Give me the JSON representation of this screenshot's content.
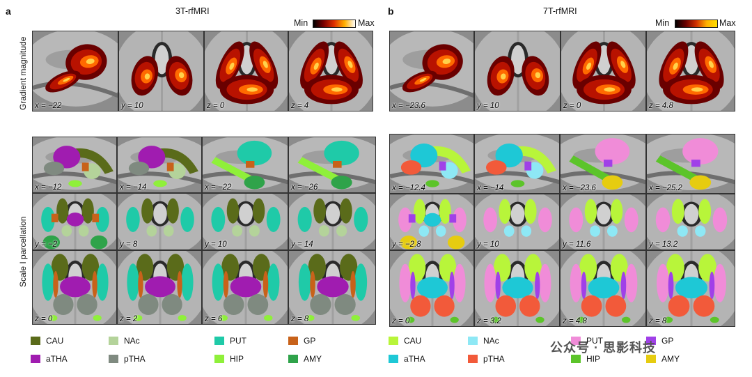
{
  "panels": [
    {
      "letter": "a",
      "title": "3T-rfMRI",
      "colorbar": {
        "min_label": "Min",
        "max_label": "Max",
        "stops": [
          "#000000",
          "#7a0000",
          "#e03000",
          "#ffb000",
          "#ffffff"
        ]
      },
      "row_labels": {
        "gradient": "Gradient magnitude",
        "parcellation": "Scale I parcellation"
      },
      "gradient_coords": [
        "x = −22",
        "y = 10",
        "z = 0",
        "z = 4"
      ],
      "parcel_coords": [
        [
          "x = −12",
          "x = −14",
          "x = −22",
          "x = −26"
        ],
        [
          "y = −2",
          "y = 8",
          "y = 10",
          "y = 14"
        ],
        [
          "z = 0",
          "z = 2",
          "z = 6",
          "z = 8"
        ]
      ],
      "legend": [
        {
          "label": "CAU",
          "color": "#5a6b1a"
        },
        {
          "label": "NAc",
          "color": "#b4d39a"
        },
        {
          "label": "PUT",
          "color": "#1fcaa8"
        },
        {
          "label": "GP",
          "color": "#c8621a"
        },
        {
          "label": "aTHA",
          "color": "#a01cb0"
        },
        {
          "label": "pTHA",
          "color": "#7f8a80"
        },
        {
          "label": "HIP",
          "color": "#8ff03a"
        },
        {
          "label": "AMY",
          "color": "#2fa34a"
        }
      ]
    },
    {
      "letter": "b",
      "title": "7T-rfMRI",
      "colorbar": {
        "min_label": "Min",
        "max_label": "Max",
        "stops": [
          "#000000",
          "#6a0000",
          "#d03000",
          "#ffb000",
          "#ffe000"
        ]
      },
      "gradient_coords": [
        "x = −23.6",
        "y = 10",
        "z = 0",
        "z = 4.8"
      ],
      "parcel_coords": [
        [
          "x = −12.4",
          "x = −14",
          "x = −23.6",
          "x = −25.2"
        ],
        [
          "y = −2.8",
          "y = 10",
          "y = 11.6",
          "y = 13.2"
        ],
        [
          "z = 0",
          "z = 3.2",
          "z = 4.8",
          "z = 8"
        ]
      ],
      "legend": [
        {
          "label": "CAU",
          "color": "#b8f53a"
        },
        {
          "label": "NAc",
          "color": "#8ee8f5"
        },
        {
          "label": "PUT",
          "color": "#f08cd8"
        },
        {
          "label": "GP",
          "color": "#a040e8"
        },
        {
          "label": "aTHA",
          "color": "#1ec8d6"
        },
        {
          "label": "pTHA",
          "color": "#f25a3a"
        },
        {
          "label": "HIP",
          "color": "#5cc42a"
        },
        {
          "label": "AMY",
          "color": "#e6cc10"
        }
      ]
    }
  ],
  "watermark": "公众号 · 思影科技"
}
